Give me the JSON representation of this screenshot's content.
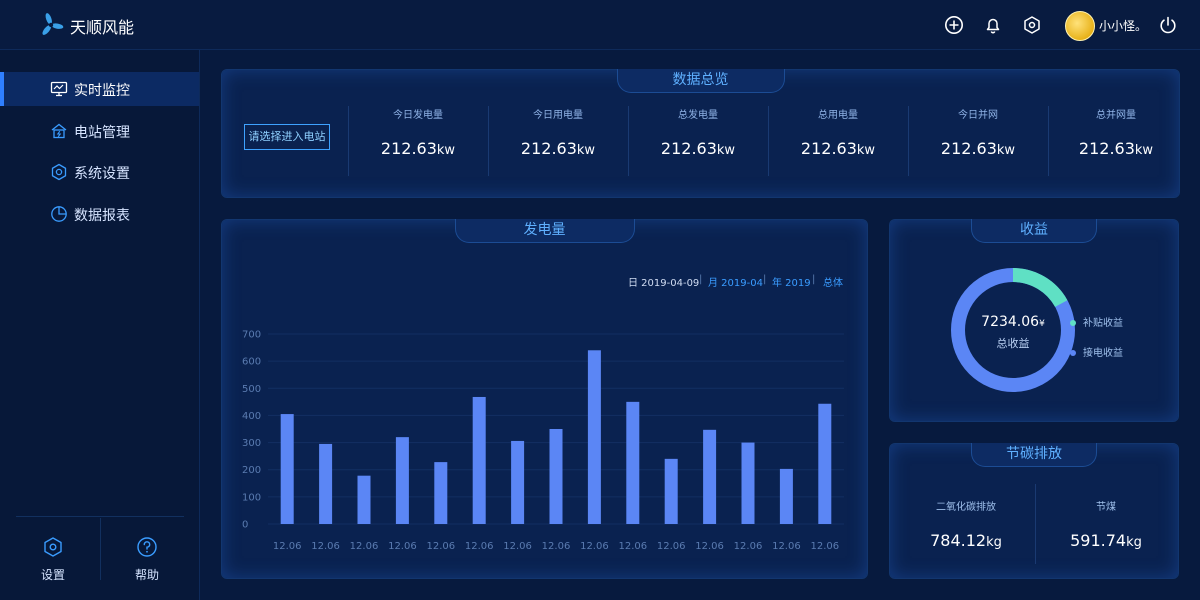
{
  "app": {
    "brand": "天顺风能"
  },
  "topbar": {
    "username": "小小怪。"
  },
  "sidebar": {
    "items": [
      {
        "label": "实时监控",
        "icon": "monitor-icon",
        "active": true
      },
      {
        "label": "电站管理",
        "icon": "station-icon",
        "active": false
      },
      {
        "label": "系统设置",
        "icon": "settings-icon",
        "active": false
      },
      {
        "label": "数据报表",
        "icon": "pie-chart-icon",
        "active": false
      }
    ],
    "bottom": [
      {
        "label": "设置",
        "icon": "hexagon-settings-icon"
      },
      {
        "label": "帮助",
        "icon": "help-icon"
      }
    ]
  },
  "overview": {
    "title": "数据总览",
    "select_button": "请选择进入电站",
    "stats": [
      {
        "label": "今日发电量",
        "value": "212.63",
        "unit": "kw"
      },
      {
        "label": "今日用电量",
        "value": "212.63",
        "unit": "kw"
      },
      {
        "label": "总发电量",
        "value": "212.63",
        "unit": "kw"
      },
      {
        "label": "总用电量",
        "value": "212.63",
        "unit": "kw"
      },
      {
        "label": "今日并网",
        "value": "212.63",
        "unit": "kw"
      },
      {
        "label": "总并网量",
        "value": "212.63",
        "unit": "kw"
      }
    ]
  },
  "generation": {
    "title": "发电量",
    "filters": {
      "day": "日 2019-04-09",
      "month": "月 2019-04",
      "year": "年 2019",
      "total": "总体",
      "separator": "|"
    }
  },
  "chart_data": {
    "type": "bar",
    "categories": [
      "12.06",
      "12.06",
      "12.06",
      "12.06",
      "12.06",
      "12.06",
      "12.06",
      "12.06",
      "12.06",
      "12.06",
      "12.06",
      "12.06",
      "12.06",
      "12.06",
      "12.06"
    ],
    "values": [
      405,
      295,
      178,
      320,
      228,
      468,
      306,
      350,
      640,
      450,
      240,
      347,
      300,
      203,
      443
    ],
    "yticks": [
      0,
      100,
      200,
      300,
      400,
      500,
      600,
      700
    ],
    "ylim": [
      0,
      700
    ],
    "bar_color": "#5b86f5",
    "title": "",
    "xlabel": "",
    "ylabel": ""
  },
  "revenue": {
    "title": "收益",
    "total_value": "7234.06",
    "total_unit": "¥",
    "total_label": "总收益",
    "legend": [
      {
        "label": "补贴收益",
        "color": "#5fe0c4"
      },
      {
        "label": "接电收益",
        "color": "#5b86f5"
      }
    ],
    "subsidy_fraction": 0.17
  },
  "carbon": {
    "title": "节碳排放",
    "items": [
      {
        "label": "二氧化碳排放",
        "value": "784.12",
        "unit": "kg"
      },
      {
        "label": "节煤",
        "value": "591.74",
        "unit": "kg"
      }
    ]
  },
  "colors": {
    "accent": "#2f7fff",
    "title": "#5fb0ff",
    "background": "#071a3e"
  }
}
